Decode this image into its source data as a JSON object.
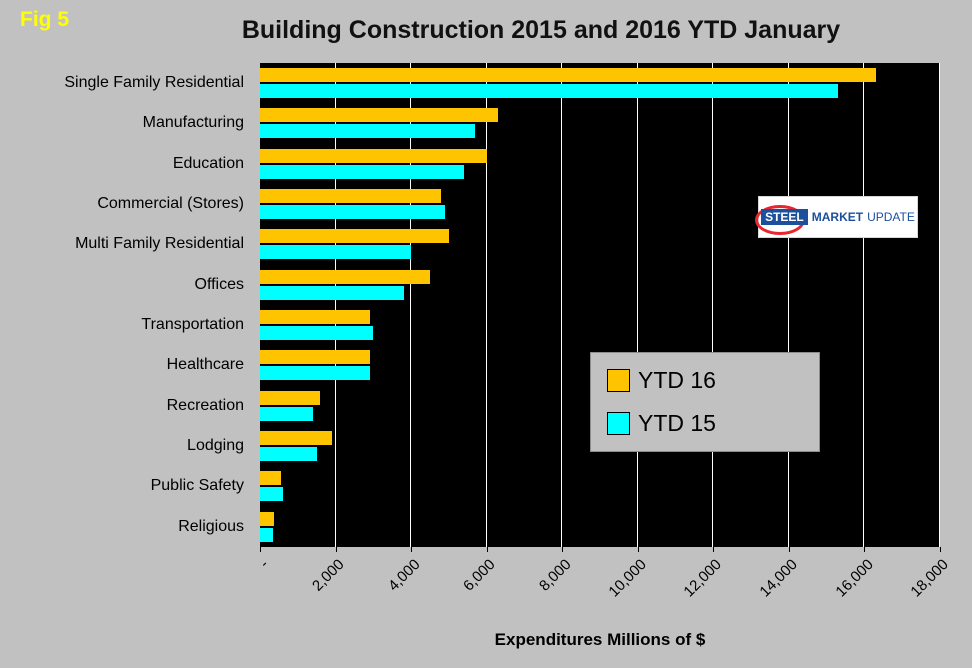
{
  "fig_label": "Fig 5",
  "title": "Building Construction 2015 and 2016  YTD January",
  "x_axis_title": "Expenditures Millions of $",
  "colors": {
    "background": "#c1c1c1",
    "plot_background": "#000000",
    "gridline": "#ffffff",
    "ytd16_bar": "#ffc400",
    "ytd15_bar": "#00ffff",
    "fig_label_text": "#ffff00"
  },
  "legend": [
    {
      "label": "YTD 16",
      "color": "#ffc400"
    },
    {
      "label": "YTD 15",
      "color": "#00ffff"
    }
  ],
  "logo": {
    "steel": "STEEL",
    "market": "MARKET",
    "update": "UPDATE"
  },
  "chart_data": {
    "type": "bar",
    "orientation": "horizontal",
    "title": "Building Construction 2015 and 2016  YTD January",
    "xlabel": "Expenditures Millions of $",
    "categories": [
      "Single Family Residential",
      "Manufacturing",
      "Education",
      "Commercial (Stores)",
      "Multi Family Residential",
      "Offices",
      "Transportation",
      "Healthcare",
      "Recreation",
      "Lodging",
      "Public Safety",
      "Religious"
    ],
    "series": [
      {
        "name": "YTD 16",
        "color": "#ffc400",
        "values": [
          16300,
          6300,
          6000,
          4800,
          5000,
          4500,
          2900,
          2900,
          1600,
          1900,
          550,
          370
        ]
      },
      {
        "name": "YTD 15",
        "color": "#00ffff",
        "values": [
          15300,
          5700,
          5400,
          4900,
          4000,
          3800,
          3000,
          2900,
          1400,
          1500,
          600,
          350
        ]
      }
    ],
    "xlim": [
      0,
      18000
    ],
    "xticks": [
      0,
      2000,
      4000,
      6000,
      8000,
      10000,
      12000,
      14000,
      16000,
      18000
    ],
    "xtick_labels": [
      "-",
      "2,000",
      "4,000",
      "6,000",
      "8,000",
      "10,000",
      "12,000",
      "14,000",
      "16,000",
      "18,000"
    ],
    "grid": "vertical-white",
    "legend_position": "inside-middle-right"
  }
}
